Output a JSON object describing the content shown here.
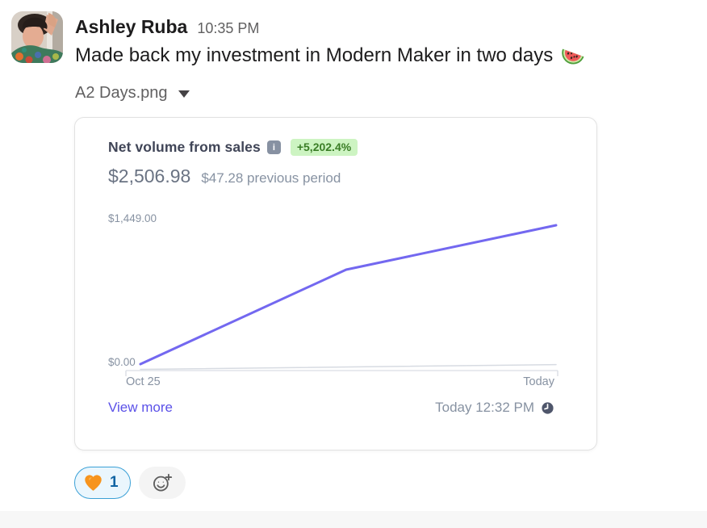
{
  "message": {
    "author": "Ashley Ruba",
    "timestamp": "10:35 PM",
    "text": "Made back my investment in Modern Maker in two days",
    "text_emoji": "watermelon",
    "attachment_name": "A2 Days.png"
  },
  "icons": {
    "attachment_toggle": "caret-down-icon",
    "title_info": "info-icon",
    "footer_clock": "clock-icon",
    "add_reaction": "emoji-plus-icon",
    "reaction_emoji": "orange-heart"
  },
  "card": {
    "title": "Net volume from sales",
    "badge": "+5,202.4%",
    "badge_bg": "#cdf4c2",
    "badge_text_color": "#3a7d26",
    "current_value": "$2,506.98",
    "previous_value": "$47.28 previous period",
    "footer_link": "View more",
    "footer_timestamp": "Today 12:32 PM",
    "accent_color": "#5b51e8"
  },
  "chart_data": {
    "type": "line",
    "title": "Net volume from sales",
    "x_ticks": [
      "Oct 25",
      "Today"
    ],
    "y_ticks": [
      "$0.00",
      "$1,449.00"
    ],
    "ylim": [
      0,
      1449
    ],
    "grid": false,
    "legend": "none",
    "series": [
      {
        "name": "Net volume",
        "color": "#7368f0",
        "stroke_width": 3,
        "x_frac": [
          0,
          0.495,
          1
        ],
        "values": [
          0,
          942,
          1385
        ],
        "baseline_y": 180
      },
      {
        "name": "Previous period",
        "color": "#d7dbe2",
        "stroke_width": 1.5,
        "x_frac": [
          0,
          1
        ],
        "values": [
          0,
          47.28
        ],
        "baseline_y": 186.5
      }
    ],
    "plot": {
      "x0": 25,
      "x1": 540,
      "ymax": 1449,
      "yscale": 180
    }
  },
  "reactions": {
    "count": "1",
    "emoji": "orange-heart",
    "pill_border": "#3aa0d6",
    "count_color": "#1264a3"
  }
}
